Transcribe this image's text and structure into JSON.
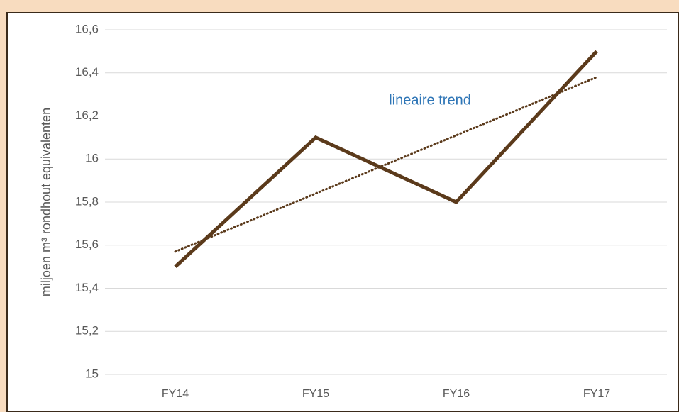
{
  "chart_data": {
    "type": "line",
    "y_label": "miljoen m³ rondhout equivalenten",
    "categories": [
      "FY14",
      "FY15",
      "FY16",
      "FY17"
    ],
    "series": [
      {
        "name": "miljoen m³ rondhout equivalenten",
        "color": "#5b3a1b",
        "values": [
          15.5,
          16.1,
          15.8,
          16.5
        ]
      },
      {
        "name": "lineaire trend",
        "color": "#5b3a1b",
        "values": [
          15.57,
          15.84,
          16.11,
          16.38
        ],
        "dotted": true,
        "label_color": "#2e75b6"
      }
    ],
    "ylim": [
      15,
      16.6
    ],
    "yticks": [
      15,
      {
        "value": 15.2,
        "label": "15,2"
      },
      {
        "value": 15.4,
        "label": "15,4"
      },
      {
        "value": 15.6,
        "label": "15,6"
      },
      {
        "value": 15.8,
        "label": "15,8"
      },
      16,
      {
        "value": 16.2,
        "label": "16,2"
      },
      {
        "value": 16.4,
        "label": "16,4"
      },
      {
        "value": 16.6,
        "label": "16,6"
      }
    ],
    "grid": true
  }
}
